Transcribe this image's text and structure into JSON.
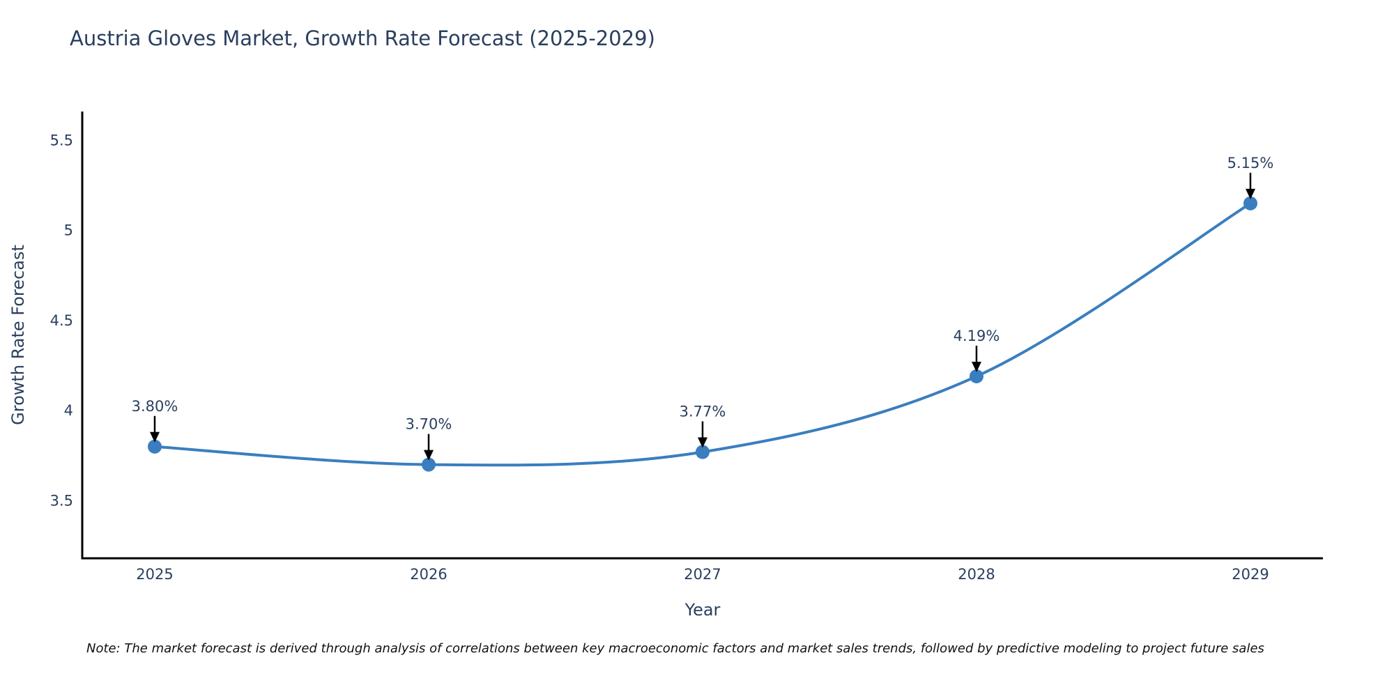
{
  "figure": {
    "title": "Austria Gloves Market, Growth Rate Forecast (2025-2029)",
    "note": "Note: The market forecast is derived through analysis of correlations between key macroeconomic factors and market sales trends, followed by predictive modeling to project future sales"
  },
  "chart_data": {
    "type": "line",
    "title": "Austria Gloves Market, Growth Rate Forecast (2025-2029)",
    "x": [
      "2025",
      "2026",
      "2027",
      "2028",
      "2029"
    ],
    "values": [
      3.8,
      3.7,
      3.77,
      4.19,
      5.15
    ],
    "point_labels": [
      "3.80%",
      "3.70%",
      "3.77%",
      "4.19%",
      "5.15%"
    ],
    "xlabel": "Year",
    "ylabel": "Growth Rate Forecast",
    "yticks": [
      3.5,
      4,
      4.5,
      5,
      5.5
    ],
    "ylim": [
      3.18,
      5.66
    ],
    "line_shape": "spline",
    "grid": false,
    "legend": false,
    "annotations": "black arrows pointing down from each percentage label to its data point",
    "colors": {
      "line": "#3a7ebf",
      "marker": "#3a7ebf",
      "text": "#2a3f5f",
      "axis_line": "#000000",
      "arrow": "#000000",
      "note_text": "#111111",
      "background": "#ffffff"
    }
  }
}
